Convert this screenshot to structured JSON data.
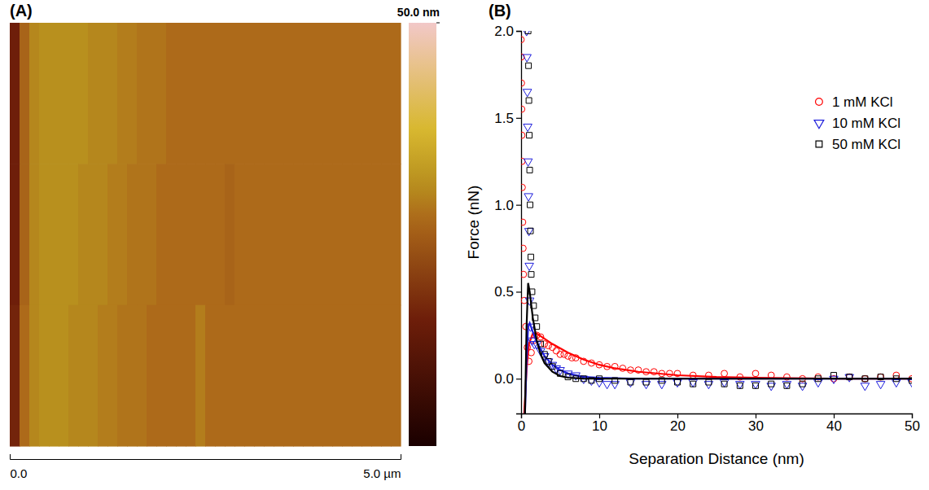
{
  "chart_data": [
    {
      "type": "heatmap",
      "panel": "(A)",
      "tick_labels": "x",
      "xlim": [
        0,
        5
      ],
      "xticks": [
        {
          "value": 0,
          "label": "0.0"
        },
        {
          "value": 5,
          "label": "5.0 µm"
        }
      ],
      "colorbar": {
        "range": [
          0,
          50
        ],
        "ticks": [
          {
            "value": 50,
            "label": "50.0 nm"
          }
        ]
      },
      "cells": [
        [
          15,
          26,
          30,
          31,
          31,
          31,
          31,
          31,
          30,
          30,
          30,
          29,
          29,
          28,
          28,
          28,
          27,
          27,
          27,
          27,
          27,
          27,
          27,
          27,
          27,
          27,
          27,
          27,
          27,
          27,
          27,
          27,
          27,
          27,
          27,
          27,
          27,
          27,
          27,
          27
        ],
        [
          15,
          26,
          30,
          31,
          31,
          31,
          31,
          30,
          30,
          30,
          29,
          29,
          28,
          28,
          28,
          27,
          27,
          27,
          27,
          27,
          27,
          27,
          26,
          27,
          27,
          27,
          27,
          27,
          27,
          27,
          27,
          27,
          27,
          27,
          27,
          27,
          27,
          27,
          27,
          27
        ],
        [
          16,
          27,
          30,
          31,
          31,
          31,
          30,
          30,
          30,
          29,
          29,
          28,
          28,
          28,
          27,
          27,
          27,
          27,
          27,
          29,
          27,
          27,
          27,
          27,
          27,
          27,
          27,
          27,
          27,
          27,
          27,
          27,
          27,
          27,
          27,
          27,
          27,
          27,
          27,
          27
        ]
      ]
    },
    {
      "type": "scatter",
      "panel": "(B)",
      "x_label": "Separation Distance (nm)",
      "y_label": "Force (nN)",
      "xlim": [
        0,
        50
      ],
      "ylim": [
        -0.2,
        2.0
      ],
      "xticks": [
        0,
        10,
        20,
        30,
        40,
        50
      ],
      "yticks": [
        {
          "value": 0,
          "label": "0.0"
        },
        {
          "value": 0.5,
          "label": "0.5"
        },
        {
          "value": 1,
          "label": "1.0"
        },
        {
          "value": 1.5,
          "label": "1.5"
        },
        {
          "value": 2,
          "label": "2.0"
        }
      ],
      "legend": "upper right",
      "series": [
        {
          "name": "1 mM KCl",
          "color": "#ff0000",
          "marker": "circle",
          "x": [
            0.0,
            0.02,
            0.05,
            0.08,
            0.1,
            0.12,
            0.15,
            0.2,
            0.25,
            0.3,
            0.4,
            0.6,
            0.8,
            1.0,
            1.3,
            1.6,
            2.0,
            2.5,
            3,
            3.5,
            4,
            4.5,
            5,
            5.5,
            6,
            6.5,
            7,
            8,
            9,
            10,
            11,
            12,
            13,
            14,
            15,
            16,
            17,
            18,
            19,
            20,
            22,
            24,
            26,
            28,
            30,
            32,
            34,
            36,
            38,
            40,
            42,
            44,
            46,
            48,
            50
          ],
          "values": [
            1.95,
            1.85,
            1.7,
            1.55,
            1.4,
            1.25,
            1.1,
            0.9,
            0.75,
            0.6,
            0.45,
            0.3,
            0.18,
            0.1,
            0.15,
            0.22,
            0.25,
            0.24,
            0.2,
            0.19,
            0.18,
            0.16,
            0.14,
            0.14,
            0.13,
            0.12,
            0.12,
            0.1,
            0.09,
            0.08,
            0.07,
            0.07,
            0.06,
            0.05,
            0.05,
            0.04,
            0.04,
            0.03,
            0.03,
            0.03,
            0.02,
            0.02,
            0.03,
            0.01,
            0.03,
            0.02,
            0.01,
            0.0,
            0.01,
            0.0,
            0.01,
            0.0,
            0.01,
            0.02,
            0.0
          ],
          "fit": {
            "line_style": "solid",
            "x": [
              0.4,
              0.7,
              1.0,
              1.5,
              2,
              3,
              4,
              6,
              8,
              10,
              12,
              15,
              20,
              25,
              30,
              40,
              50
            ],
            "values": [
              -0.2,
              0.05,
              0.2,
              0.26,
              0.26,
              0.23,
              0.2,
              0.15,
              0.11,
              0.08,
              0.06,
              0.04,
              0.02,
              0.01,
              0.005,
              0.001,
              0
            ]
          }
        },
        {
          "name": "10 mM KCl",
          "color": "#1f1fdc",
          "marker": "triangle-down",
          "x": [
            0.7,
            0.75,
            0.8,
            0.85,
            0.9,
            0.95,
            1.0,
            1.05,
            1.1,
            1.2,
            1.4,
            1.7,
            2.0,
            2.5,
            3,
            3.5,
            4,
            4.5,
            5,
            6,
            7,
            8,
            9,
            10,
            11,
            12,
            14,
            16,
            18,
            20,
            22,
            24,
            26,
            28,
            30,
            32,
            34,
            36,
            38,
            40,
            42,
            44,
            46,
            48,
            50
          ],
          "values": [
            2.0,
            1.85,
            1.65,
            1.45,
            1.25,
            1.05,
            0.85,
            0.65,
            0.45,
            0.3,
            0.22,
            0.2,
            0.2,
            0.16,
            0.13,
            0.1,
            0.08,
            0.06,
            0.05,
            0.03,
            0.02,
            0.0,
            -0.01,
            -0.02,
            -0.03,
            -0.03,
            -0.02,
            -0.03,
            -0.03,
            -0.02,
            -0.02,
            -0.03,
            -0.02,
            -0.03,
            -0.03,
            -0.04,
            -0.03,
            -0.04,
            -0.02,
            0.0,
            0.01,
            -0.04,
            -0.03,
            -0.02,
            -0.02
          ],
          "fit": {
            "line_style": "solid",
            "x": [
              0.5,
              0.7,
              0.9,
              1.1,
              1.5,
              2,
              3,
              4,
              5,
              6,
              8,
              10,
              15,
              20,
              30,
              50
            ],
            "values": [
              -0.2,
              0.1,
              0.3,
              0.32,
              0.27,
              0.21,
              0.13,
              0.08,
              0.05,
              0.03,
              0.01,
              0.005,
              0,
              0,
              0,
              0
            ]
          }
        },
        {
          "name": "50 mM KCl",
          "color": "#000000",
          "marker": "square",
          "x": [
            0.9,
            0.95,
            1.0,
            1.05,
            1.1,
            1.15,
            1.2,
            1.25,
            1.3,
            1.4,
            1.6,
            1.8,
            2.0,
            2.5,
            3,
            3.5,
            4,
            5,
            6,
            7,
            8,
            9,
            10,
            12,
            14,
            16,
            18,
            20,
            22,
            24,
            26,
            28,
            30,
            32,
            34,
            36,
            38,
            40,
            42,
            44,
            46,
            48,
            50
          ],
          "values": [
            2.0,
            1.8,
            1.6,
            1.4,
            1.2,
            1.0,
            0.85,
            0.7,
            0.6,
            0.5,
            0.42,
            0.35,
            0.3,
            0.2,
            0.14,
            0.1,
            0.07,
            0.03,
            0.01,
            0.0,
            0.0,
            -0.01,
            0.0,
            -0.01,
            -0.02,
            -0.02,
            -0.01,
            -0.02,
            -0.03,
            -0.02,
            -0.03,
            -0.04,
            -0.04,
            -0.03,
            -0.04,
            -0.03,
            0.0,
            0.02,
            0.01,
            0.0,
            0.01,
            0.0,
            -0.01
          ],
          "fit": {
            "line_style": "solid",
            "x": [
              0.5,
              0.7,
              0.9,
              1.1,
              1.5,
              2,
              2.5,
              3,
              4,
              5,
              6,
              8,
              10,
              15,
              20,
              30,
              50
            ],
            "values": [
              -0.2,
              0.3,
              0.55,
              0.5,
              0.35,
              0.22,
              0.14,
              0.09,
              0.04,
              0.015,
              0.006,
              0.001,
              0,
              0,
              0,
              0,
              0
            ]
          }
        }
      ]
    }
  ]
}
